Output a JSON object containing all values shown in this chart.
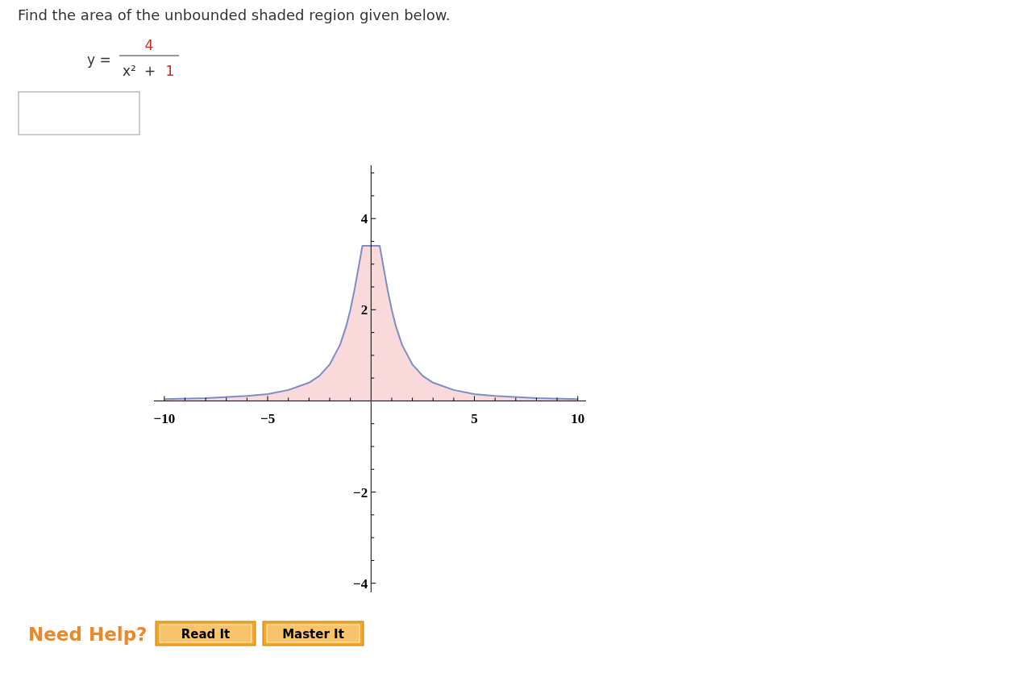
{
  "chart_data": {
    "type": "area",
    "title": "Find the area of the unbounded shaded region given below.",
    "annotations": [
      "y =",
      "4",
      "x²",
      "+",
      "1",
      "Need Help?",
      "Read It",
      "Master It"
    ],
    "x": [
      -10,
      -8,
      -6,
      -5,
      -4,
      -3,
      -2.5,
      -2,
      -1.5,
      -1.2,
      -1,
      -0.8,
      -0.6,
      -0.42,
      0.42,
      0.6,
      0.8,
      1,
      1.2,
      1.5,
      2,
      2.5,
      3,
      4,
      5,
      6,
      8,
      10
    ],
    "series": [
      {
        "color": "#7a8ec6",
        "values": [
          0.04,
          0.06,
          0.11,
          0.15,
          0.24,
          0.4,
          0.55,
          0.8,
          1.23,
          1.64,
          2.0,
          2.44,
          2.94,
          3.4,
          3.4,
          2.94,
          2.44,
          2.0,
          1.64,
          1.23,
          0.8,
          0.55,
          0.4,
          0.24,
          0.15,
          0.11,
          0.06,
          0.04
        ]
      }
    ],
    "xlim": [
      -10.5,
      10.4
    ],
    "ylim": [
      -4.2,
      5.17
    ],
    "xticks": [
      -10,
      {
        "value": -9,
        "label": null
      },
      {
        "value": -8,
        "label": null
      },
      {
        "value": -7,
        "label": null
      },
      {
        "value": -6,
        "label": null
      },
      -5,
      {
        "value": -4,
        "label": null
      },
      {
        "value": -3,
        "label": null
      },
      {
        "value": -2,
        "label": null
      },
      {
        "value": -1,
        "label": null
      },
      {
        "value": 1,
        "label": null
      },
      {
        "value": 2,
        "label": null
      },
      {
        "value": 3,
        "label": null
      },
      {
        "value": 4,
        "label": null
      },
      5,
      {
        "value": 6,
        "label": null
      },
      {
        "value": 7,
        "label": null
      },
      {
        "value": 8,
        "label": null
      },
      {
        "value": 9,
        "label": null
      },
      10
    ],
    "yticks": [
      -4,
      {
        "value": -3.5,
        "label": null
      },
      {
        "value": -3,
        "label": null
      },
      {
        "value": -2.5,
        "label": null
      },
      -2,
      {
        "value": -1.5,
        "label": null
      },
      {
        "value": -1,
        "label": null
      },
      {
        "value": -0.5,
        "label": null
      },
      {
        "value": 0.5,
        "label": null
      },
      {
        "value": 1,
        "label": null
      },
      {
        "value": 1.5,
        "label": null
      },
      2,
      {
        "value": 2.5,
        "label": null
      },
      {
        "value": 3,
        "label": null
      },
      {
        "value": 3.5,
        "label": null
      },
      4,
      {
        "value": 4.5,
        "label": null
      },
      {
        "value": 5,
        "label": null
      }
    ]
  }
}
